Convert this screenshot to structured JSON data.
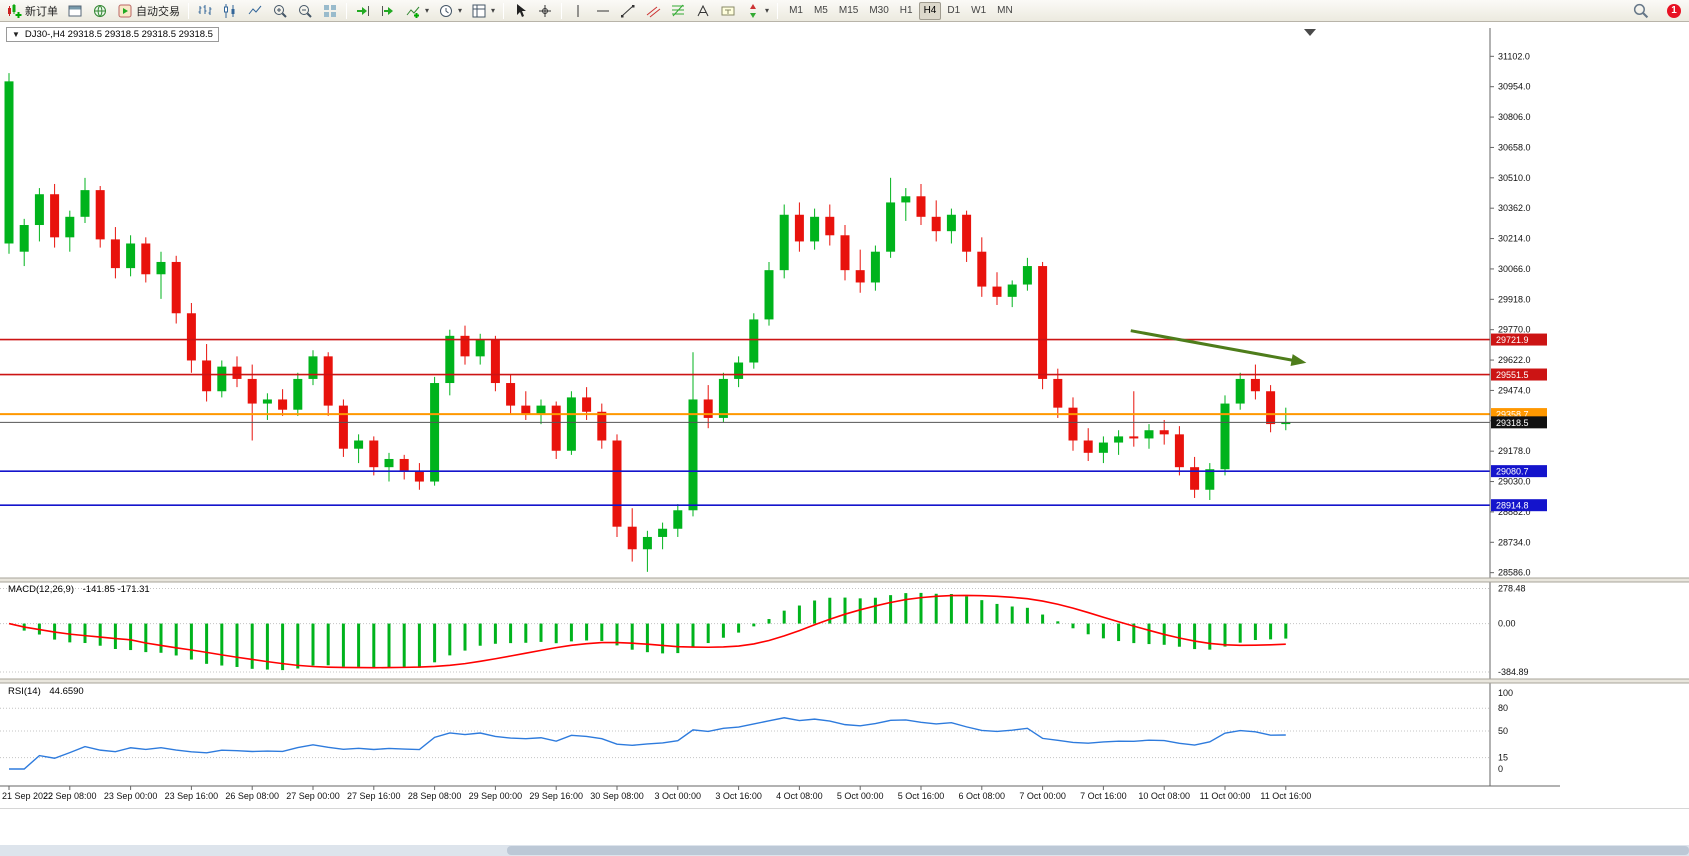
{
  "icons": {
    "caret": "▾",
    "symbol_marker": "▼"
  },
  "toolbar": {
    "new_order_label": "新订单",
    "autotrading_label": "自动交易",
    "timeframes": [
      "M1",
      "M5",
      "M15",
      "M30",
      "H1",
      "H4",
      "D1",
      "W1",
      "MN"
    ],
    "active_timeframe": "H4",
    "notification_count": "1"
  },
  "chart_header": {
    "text": "DJ30-,H4  29318.5 29318.5 29318.5 29318.5"
  },
  "indicators": {
    "macd_name": "MACD(12,26,9)",
    "macd_values": "-141.85 -171.31",
    "rsi_name": "RSI(14)",
    "rsi_value": "44.6590"
  },
  "chart_data": {
    "type": "candlestick",
    "symbol": "DJ30-",
    "timeframe": "H4",
    "up_color": "#00b31c",
    "down_color": "#e8120c",
    "price_range": [
      28560,
      31240
    ],
    "price_axis_ticks": [
      31102,
      30954,
      30806,
      30658,
      30510,
      30362,
      30214,
      30066,
      29918,
      29770,
      29622,
      29474,
      29326,
      29178,
      29030,
      28882,
      28734,
      28586
    ],
    "label_every": 4,
    "time_labels": [
      "21 Sep 2022",
      "22 Sep 08:00",
      "23 Sep 00:00",
      "23 Sep 16:00",
      "26 Sep 08:00",
      "27 Sep 00:00",
      "27 Sep 16:00",
      "28 Sep 08:00",
      "29 Sep 00:00",
      "29 Sep 16:00",
      "30 Sep 08:00",
      "3 Oct 00:00",
      "3 Oct 16:00",
      "4 Oct 08:00",
      "5 Oct 00:00",
      "5 Oct 16:00",
      "6 Oct 08:00",
      "7 Oct 00:00",
      "7 Oct 16:00",
      "10 Oct 08:00",
      "11 Oct 00:00",
      "11 Oct 16:00"
    ],
    "candles": [
      [
        30190,
        31020,
        30140,
        30980
      ],
      [
        30150,
        30310,
        30080,
        30280
      ],
      [
        30280,
        30460,
        30200,
        30430
      ],
      [
        30430,
        30480,
        30170,
        30220
      ],
      [
        30220,
        30350,
        30150,
        30320
      ],
      [
        30320,
        30510,
        30290,
        30450
      ],
      [
        30450,
        30470,
        30170,
        30210
      ],
      [
        30210,
        30270,
        30020,
        30070
      ],
      [
        30070,
        30230,
        30030,
        30190
      ],
      [
        30190,
        30220,
        30000,
        30040
      ],
      [
        30040,
        30150,
        29920,
        30100
      ],
      [
        30100,
        30130,
        29800,
        29850
      ],
      [
        29850,
        29900,
        29560,
        29620
      ],
      [
        29620,
        29700,
        29420,
        29470
      ],
      [
        29470,
        29620,
        29440,
        29590
      ],
      [
        29590,
        29640,
        29490,
        29530
      ],
      [
        29530,
        29600,
        29230,
        29410
      ],
      [
        29410,
        29460,
        29330,
        29430
      ],
      [
        29430,
        29480,
        29350,
        29380
      ],
      [
        29380,
        29560,
        29350,
        29530
      ],
      [
        29530,
        29670,
        29500,
        29640
      ],
      [
        29640,
        29660,
        29350,
        29400
      ],
      [
        29400,
        29430,
        29150,
        29190
      ],
      [
        29190,
        29260,
        29120,
        29230
      ],
      [
        29230,
        29250,
        29060,
        29100
      ],
      [
        29100,
        29170,
        29030,
        29140
      ],
      [
        29140,
        29160,
        29040,
        29080
      ],
      [
        29080,
        29120,
        28990,
        29030
      ],
      [
        29030,
        29540,
        29010,
        29510
      ],
      [
        29510,
        29770,
        29450,
        29740
      ],
      [
        29740,
        29790,
        29600,
        29640
      ],
      [
        29640,
        29750,
        29600,
        29720
      ],
      [
        29720,
        29740,
        29470,
        29510
      ],
      [
        29510,
        29550,
        29360,
        29400
      ],
      [
        29400,
        29470,
        29330,
        29360
      ],
      [
        29360,
        29430,
        29310,
        29400
      ],
      [
        29400,
        29420,
        29140,
        29180
      ],
      [
        29180,
        29470,
        29160,
        29440
      ],
      [
        29440,
        29490,
        29330,
        29370
      ],
      [
        29370,
        29410,
        29190,
        29230
      ],
      [
        29230,
        29260,
        28760,
        28810
      ],
      [
        28810,
        28900,
        28640,
        28700
      ],
      [
        28700,
        28790,
        28590,
        28760
      ],
      [
        28760,
        28830,
        28700,
        28800
      ],
      [
        28800,
        28920,
        28760,
        28890
      ],
      [
        28890,
        29660,
        28860,
        29430
      ],
      [
        29430,
        29500,
        29290,
        29340
      ],
      [
        29340,
        29560,
        29320,
        29530
      ],
      [
        29530,
        29640,
        29490,
        29610
      ],
      [
        29610,
        29850,
        29580,
        29820
      ],
      [
        29820,
        30100,
        29790,
        30060
      ],
      [
        30060,
        30380,
        30020,
        30330
      ],
      [
        30330,
        30390,
        30150,
        30200
      ],
      [
        30200,
        30360,
        30160,
        30320
      ],
      [
        30320,
        30380,
        30180,
        30230
      ],
      [
        30230,
        30280,
        30010,
        30060
      ],
      [
        30060,
        30160,
        29950,
        30000
      ],
      [
        30000,
        30180,
        29960,
        30150
      ],
      [
        30150,
        30510,
        30120,
        30390
      ],
      [
        30390,
        30460,
        30300,
        30420
      ],
      [
        30420,
        30480,
        30280,
        30320
      ],
      [
        30320,
        30400,
        30200,
        30250
      ],
      [
        30250,
        30360,
        30190,
        30330
      ],
      [
        30330,
        30350,
        30100,
        30150
      ],
      [
        30150,
        30220,
        29930,
        29980
      ],
      [
        29980,
        30050,
        29890,
        29930
      ],
      [
        29930,
        30010,
        29880,
        29990
      ],
      [
        29990,
        30120,
        29960,
        30080
      ],
      [
        30080,
        30100,
        29480,
        29530
      ],
      [
        29530,
        29580,
        29340,
        29390
      ],
      [
        29390,
        29440,
        29180,
        29230
      ],
      [
        29230,
        29290,
        29130,
        29170
      ],
      [
        29170,
        29250,
        29120,
        29220
      ],
      [
        29220,
        29280,
        29160,
        29250
      ],
      [
        29250,
        29470,
        29200,
        29240
      ],
      [
        29240,
        29310,
        29190,
        29280
      ],
      [
        29280,
        29330,
        29210,
        29260
      ],
      [
        29260,
        29300,
        29060,
        29100
      ],
      [
        29100,
        29150,
        28950,
        28990
      ],
      [
        28990,
        29120,
        28940,
        29090
      ],
      [
        29090,
        29450,
        29060,
        29410
      ],
      [
        29410,
        29560,
        29380,
        29530
      ],
      [
        29530,
        29600,
        29430,
        29470
      ],
      [
        29470,
        29500,
        29270,
        29310
      ],
      [
        29310,
        29390,
        29280,
        29318.5
      ]
    ],
    "hlines": [
      {
        "price": 29721.9,
        "color": "#cc1414",
        "width": 1.6
      },
      {
        "price": 29551.5,
        "color": "#cc1414",
        "width": 1.6
      },
      {
        "price": 29358.7,
        "color": "#ff9800",
        "width": 2
      },
      {
        "price": 29080.7,
        "color": "#1414cc",
        "width": 1.6
      },
      {
        "price": 28914.8,
        "color": "#1414cc",
        "width": 1.6
      }
    ],
    "current_price": 29318.5,
    "trend_arrow": {
      "i1": 73.8,
      "p1": 29765,
      "i2": 84.9,
      "p2": 29615,
      "color": "#4e7d1b"
    },
    "macd": {
      "params": "12,26,9",
      "value_main": -141.85,
      "value_signal": -171.31,
      "axis_max": 278.48,
      "axis_min": -384.89,
      "range": [
        -440,
        330
      ],
      "hist_color": "#00b31c",
      "signal_color": "#ff0000"
    },
    "rsi": {
      "period": 14,
      "value": 44.659,
      "levels": [
        80,
        50,
        15
      ],
      "axis_labels": [
        100,
        80,
        50,
        15,
        0
      ],
      "range": [
        0,
        100
      ],
      "line_color": "#2e7bdd"
    }
  }
}
